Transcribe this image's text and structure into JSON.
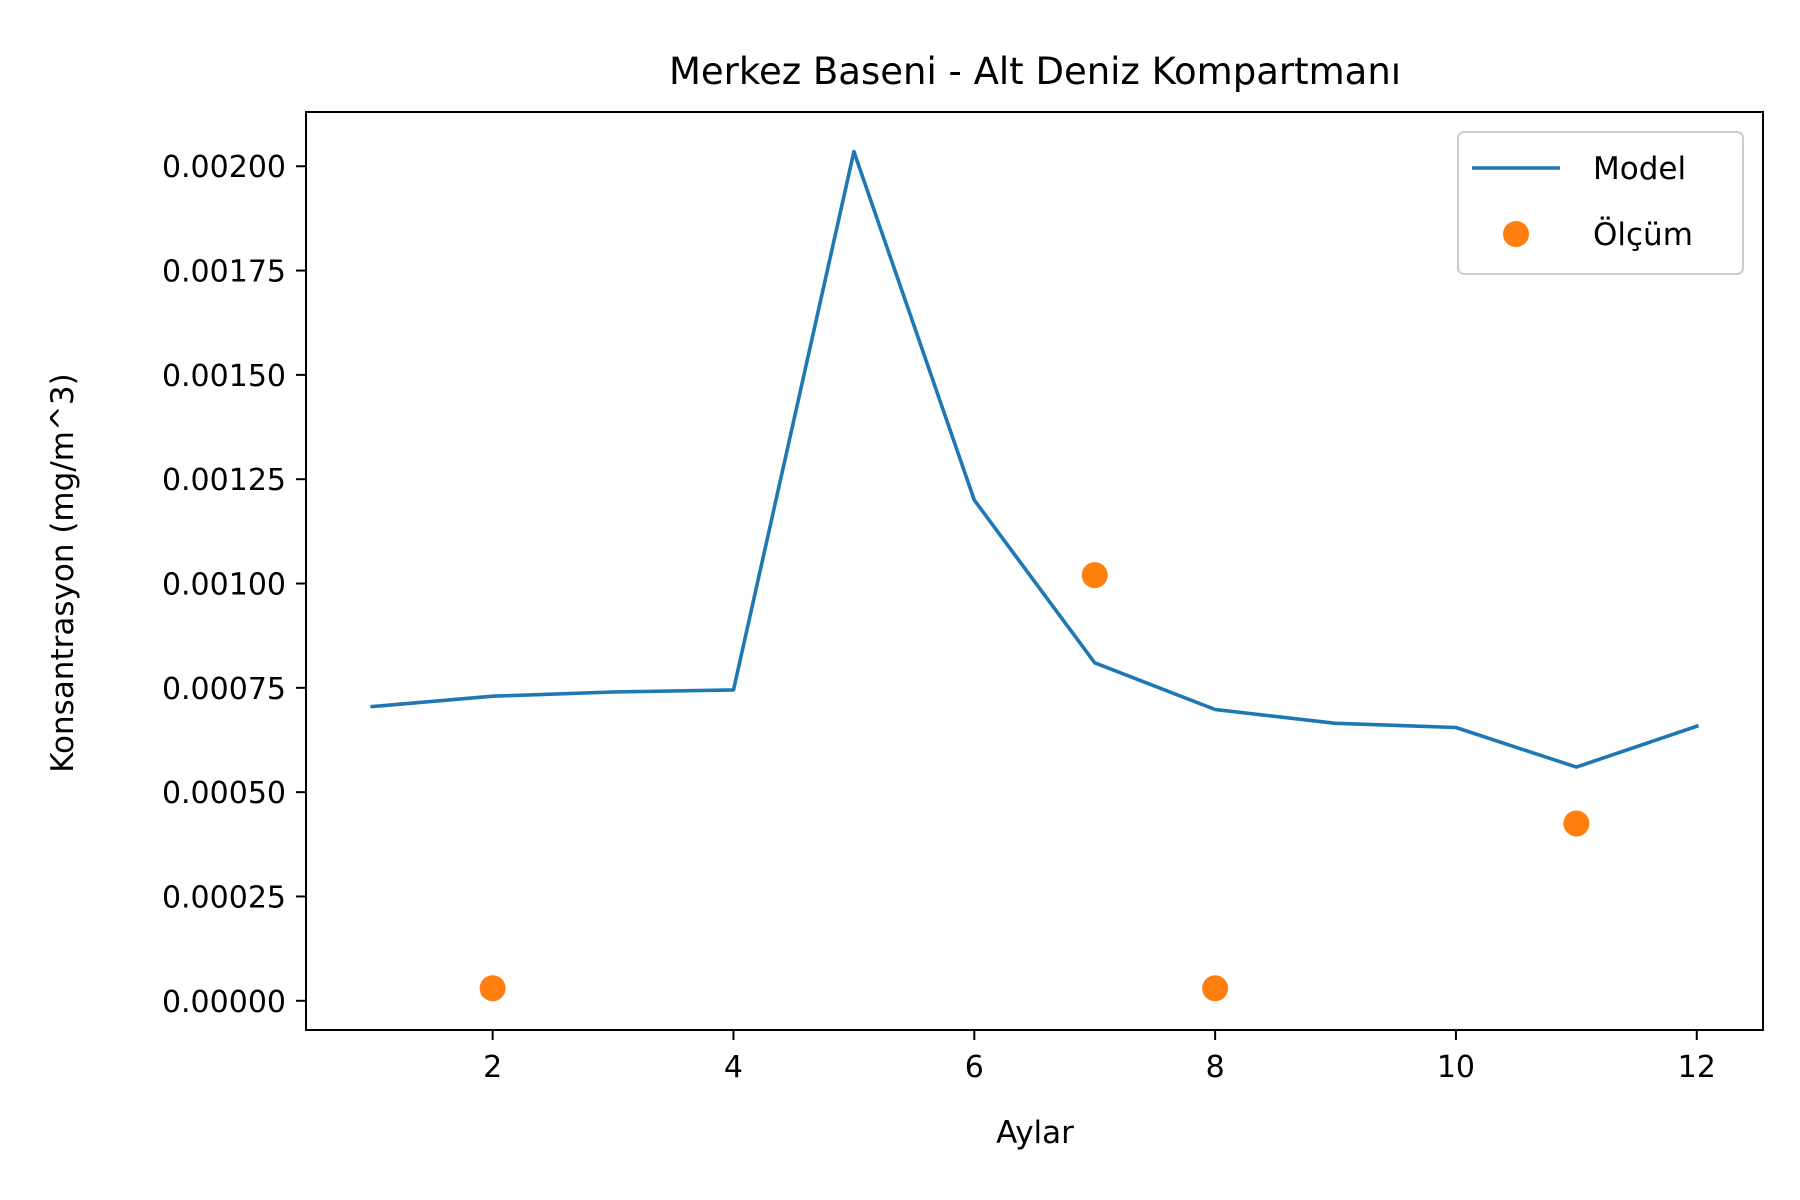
{
  "chart_data": {
    "type": "line",
    "title": "Merkez Baseni - Alt Deniz Kompartmanı",
    "xlabel": "Aylar",
    "ylabel": "Konsantrasyon (mg/m^3)",
    "xlim": [
      0.45,
      12.55
    ],
    "ylim": [
      -7e-05,
      0.00213
    ],
    "xticks": [
      2,
      4,
      6,
      8,
      10,
      12
    ],
    "xtick_labels": [
      "2",
      "4",
      "6",
      "8",
      "10",
      "12"
    ],
    "yticks": [
      0,
      0.00025,
      0.0005,
      0.00075,
      0.001,
      0.00125,
      0.0015,
      0.00175,
      0.002
    ],
    "ytick_labels": [
      "0.00000",
      "0.00025",
      "0.00050",
      "0.00075",
      "0.00100",
      "0.00125",
      "0.00150",
      "0.00175",
      "0.00200"
    ],
    "grid": false,
    "legend_position": "top-right",
    "series": [
      {
        "name": "Model",
        "kind": "line",
        "color": "#1f77b4",
        "x": [
          1,
          2,
          3,
          4,
          5,
          6,
          7,
          8,
          9,
          10,
          11,
          12
        ],
        "y": [
          0.000705,
          0.00073,
          0.00074,
          0.000745,
          0.002035,
          0.0012,
          0.00081,
          0.000698,
          0.000665,
          0.000655,
          0.00056,
          0.000658
        ]
      },
      {
        "name": "Ölçüm",
        "kind": "scatter",
        "color": "#ff7f0e",
        "x": [
          2,
          7,
          8,
          11
        ],
        "y": [
          3e-05,
          0.00102,
          3e-05,
          0.000425
        ]
      }
    ]
  }
}
